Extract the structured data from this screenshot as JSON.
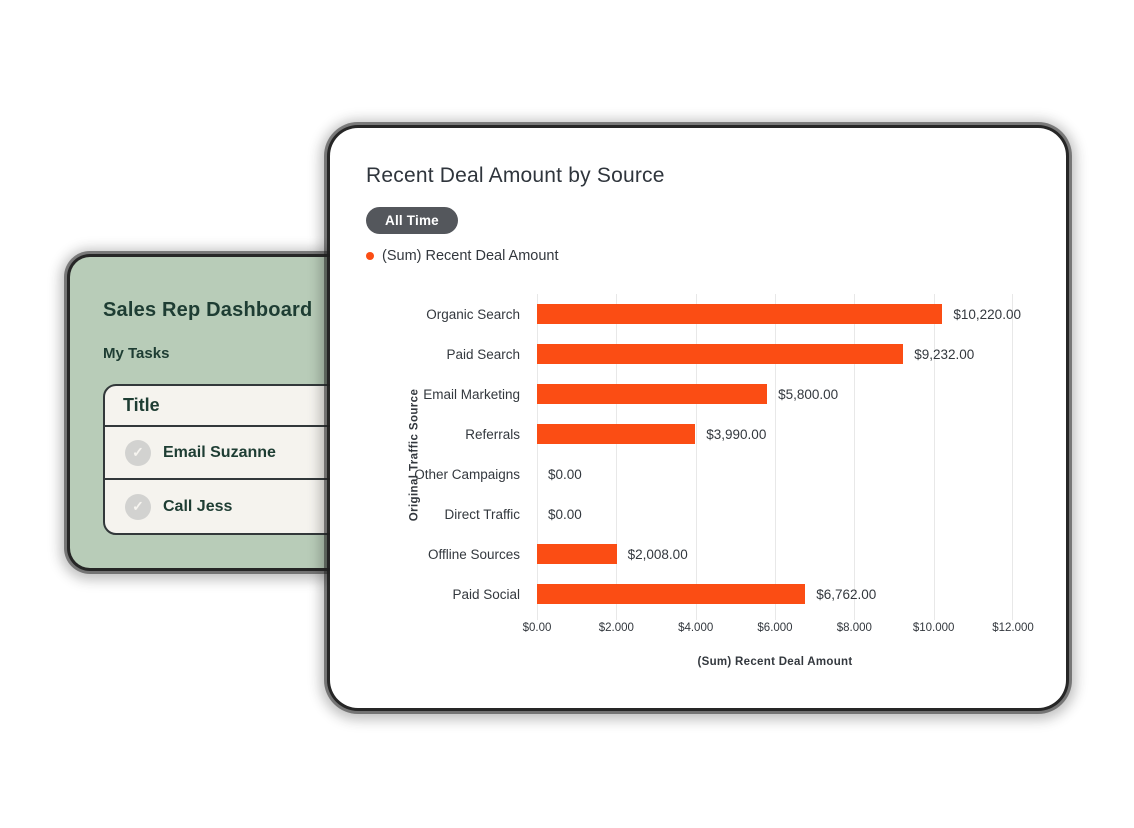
{
  "tasks_card": {
    "title": "Sales Rep Dashboard",
    "subtitle": "My Tasks",
    "table": {
      "header": "Title",
      "rows": [
        {
          "label": "Email Suzanne",
          "icon": "check-circle-icon",
          "check_glyph": "✓"
        },
        {
          "label": "Call Jess",
          "icon": "check-circle-icon",
          "check_glyph": "✓"
        }
      ]
    },
    "colors": {
      "background": "#b8ccb8",
      "text": "#1e3d33",
      "table_bg": "#f5f3ee",
      "check_circle": "#d2d2d0"
    }
  },
  "report_card": {
    "title": "Recent Deal Amount by Source",
    "time_filter_label": "All Time",
    "legend": {
      "label": "(Sum) Recent Deal Amount",
      "color": "#fb4d14"
    },
    "colors": {
      "background": "#ffffff",
      "pill_bg": "#54575c",
      "text": "#2f353c"
    }
  },
  "chart_data": {
    "type": "bar",
    "orientation": "horizontal",
    "title": "Recent Deal Amount by Source",
    "series_name": "(Sum) Recent Deal Amount",
    "categories": [
      "Organic Search",
      "Paid Search",
      "Email Marketing",
      "Referrals",
      "Other Campaigns",
      "Direct Traffic",
      "Offline Sources",
      "Paid Social"
    ],
    "values": [
      10220,
      9232,
      5800,
      3990,
      0,
      0,
      2008,
      6762
    ],
    "value_labels": [
      "$10,220.00",
      "$9,232.00",
      "$5,800.00",
      "$3,990.00",
      "$0.00",
      "$0.00",
      "$2,008.00",
      "$6,762.00"
    ],
    "xlabel": "(Sum) Recent Deal Amount",
    "ylabel": "Original Traffic Source",
    "xlim": [
      0,
      12000
    ],
    "x_ticks": [
      "$0.00",
      "$2.000",
      "$4.000",
      "$6.000",
      "$8.000",
      "$10.000",
      "$12.000"
    ],
    "grid": true,
    "legend_position": "top-left",
    "bar_color": "#fb4d14",
    "gridline_color": "#e8e8e8"
  }
}
